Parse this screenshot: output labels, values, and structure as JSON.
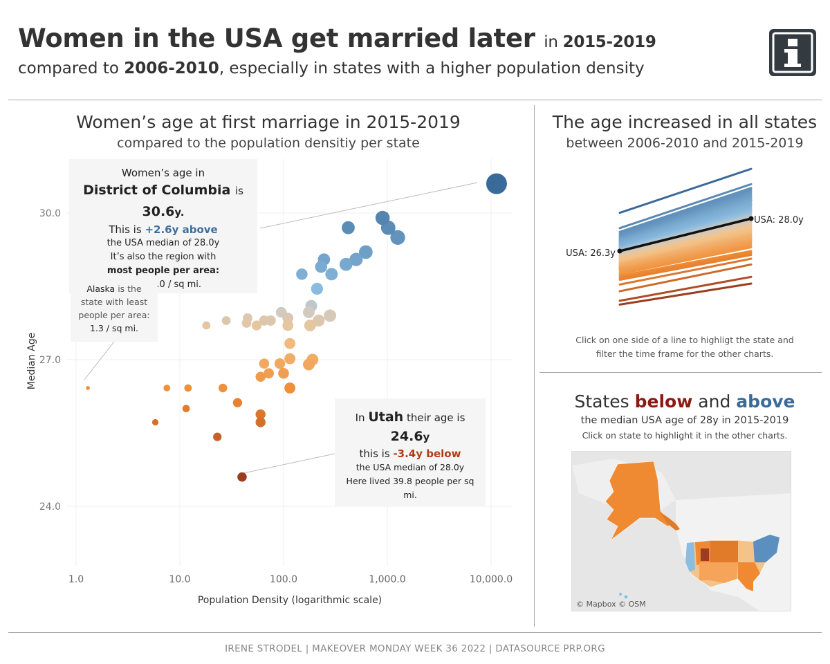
{
  "header": {
    "title_main": "Women in the USA get married later",
    "title_in": "in",
    "title_period": "2015-2019",
    "subtitle_pre": "compared to",
    "subtitle_period": "2006-2010",
    "subtitle_post": ", especially in states with a higher population density",
    "info_icon": "info-icon"
  },
  "scatter": {
    "title": "Women’s age at first marriage in 2015-2019",
    "subtitle": "compared to the population densitiy per state",
    "ylabel": "Median Age",
    "xlabel": "Population Density (logarithmic scale)",
    "xticks": [
      "1.0",
      "10.0",
      "100.0",
      "1,000.0",
      "10,000.0"
    ],
    "yticks": [
      "30.0",
      "27.0",
      "24.0"
    ]
  },
  "tooltips": {
    "dc": {
      "line1": "Women’s age in",
      "state": "District of Columbia",
      "is": "is",
      "value": "30.6",
      "value_unit": "y.",
      "line_this": "This is",
      "diff": "+2.6y above",
      "line_median": "the USA median of 28.0y",
      "line_region": "It’s also the region with",
      "line_most": "most people per area:",
      "line_density": "11,295.0 / sq mi."
    },
    "ak": {
      "state": "Alaska",
      "line1": "is the",
      "line2": "state with least",
      "line3": "people per area:",
      "line4": "1.3 / sq mi."
    },
    "ut": {
      "in": "In",
      "state": "Utah",
      "line1": "their age is",
      "value": "24.6",
      "value_unit": "y",
      "line_this": "this is",
      "diff": "-3.4y below",
      "line_median": "the USA median of 28.0y",
      "line_density": "Here lived 39.8 people per sq mi."
    }
  },
  "slope": {
    "title": "The age increased in all states",
    "subtitle": "between 2006-2010 and 2015-2019",
    "label_left": "USA: 26.3y",
    "label_right": "USA: 28.0y",
    "note_line1": "Click on one side of a line to highligt the state and",
    "note_line2": "filter the time frame for the other charts."
  },
  "map": {
    "title_pre": "States",
    "title_below": "below",
    "title_and": "and",
    "title_above": "above",
    "subtitle": "the median USA age of 28y in 2015-2019",
    "note": "Click on state to highlight it in the other charts.",
    "credit": "© Mapbox © OSM"
  },
  "footer": {
    "text": "IRENE STRODEL | MAKEOVER MONDAY WEEK 36 2022 | DATASOURCE PRP.ORG"
  },
  "colors": {
    "above_dark": "#3a6a99",
    "above_light": "#8cbde0",
    "neutral": "#cfcac2",
    "below_light": "#f3c38a",
    "below_mid": "#ef8a32",
    "below_dark": "#9c3d1f"
  },
  "chart_data": [
    {
      "type": "scatter",
      "title": "Women’s age at first marriage in 2015-2019",
      "xlabel": "Population Density (logarithmic scale)",
      "ylabel": "Median Age",
      "x_scale": "log",
      "xlim": [
        0.9,
        20000
      ],
      "ylim": [
        22.9,
        31.2
      ],
      "grid": true,
      "points": [
        {
          "x": 11295,
          "y": 30.6
        },
        {
          "x": 1260,
          "y": 29.5
        },
        {
          "x": 1020,
          "y": 29.7
        },
        {
          "x": 900,
          "y": 29.9
        },
        {
          "x": 420,
          "y": 29.7
        },
        {
          "x": 620,
          "y": 29.2
        },
        {
          "x": 500,
          "y": 29.05
        },
        {
          "x": 400,
          "y": 28.95
        },
        {
          "x": 245,
          "y": 29.05
        },
        {
          "x": 230,
          "y": 28.9
        },
        {
          "x": 290,
          "y": 28.75
        },
        {
          "x": 150,
          "y": 28.75
        },
        {
          "x": 210,
          "y": 28.45
        },
        {
          "x": 185,
          "y": 28.1
        },
        {
          "x": 175,
          "y": 27.97
        },
        {
          "x": 95,
          "y": 27.97
        },
        {
          "x": 110,
          "y": 27.85
        },
        {
          "x": 280,
          "y": 27.9
        },
        {
          "x": 218,
          "y": 27.8
        },
        {
          "x": 180,
          "y": 27.7
        },
        {
          "x": 110,
          "y": 27.7
        },
        {
          "x": 75,
          "y": 27.8
        },
        {
          "x": 65,
          "y": 27.8
        },
        {
          "x": 45,
          "y": 27.85
        },
        {
          "x": 44,
          "y": 27.75
        },
        {
          "x": 55,
          "y": 27.7
        },
        {
          "x": 28,
          "y": 27.8
        },
        {
          "x": 18,
          "y": 27.7
        },
        {
          "x": 115,
          "y": 27.33
        },
        {
          "x": 115,
          "y": 27.02
        },
        {
          "x": 92,
          "y": 26.92
        },
        {
          "x": 65,
          "y": 26.92
        },
        {
          "x": 190,
          "y": 27.0
        },
        {
          "x": 175,
          "y": 26.9
        },
        {
          "x": 72,
          "y": 26.72
        },
        {
          "x": 100,
          "y": 26.72
        },
        {
          "x": 60,
          "y": 26.65
        },
        {
          "x": 115,
          "y": 26.42
        },
        {
          "x": 26,
          "y": 26.42
        },
        {
          "x": 12,
          "y": 26.42
        },
        {
          "x": 7.5,
          "y": 26.42
        },
        {
          "x": 1.3,
          "y": 26.42
        },
        {
          "x": 36,
          "y": 26.12
        },
        {
          "x": 11.5,
          "y": 26.0
        },
        {
          "x": 60,
          "y": 25.88
        },
        {
          "x": 60,
          "y": 25.72
        },
        {
          "x": 5.8,
          "y": 25.72
        },
        {
          "x": 23,
          "y": 25.42
        },
        {
          "x": 39.8,
          "y": 24.6
        }
      ]
    },
    {
      "type": "line",
      "title": "The age increased in all states",
      "x": [
        "2006-2010",
        "2015-2019"
      ],
      "usa": {
        "name": "USA",
        "values": [
          26.3,
          28.0
        ]
      },
      "series": [
        {
          "values": [
            28.3,
            30.6
          ]
        },
        {
          "values": [
            27.5,
            29.8
          ]
        },
        {
          "values": [
            27.3,
            29.6
          ]
        },
        {
          "values": [
            27.2,
            29.5
          ]
        },
        {
          "values": [
            27.1,
            29.4
          ]
        },
        {
          "values": [
            27.0,
            29.3
          ]
        },
        {
          "values": [
            26.95,
            29.2
          ]
        },
        {
          "values": [
            26.9,
            29.1
          ]
        },
        {
          "values": [
            26.85,
            29.0
          ]
        },
        {
          "values": [
            26.8,
            28.95
          ]
        },
        {
          "values": [
            26.75,
            28.9
          ]
        },
        {
          "values": [
            26.7,
            28.8
          ]
        },
        {
          "values": [
            26.65,
            28.75
          ]
        },
        {
          "values": [
            26.6,
            28.7
          ]
        },
        {
          "values": [
            26.55,
            28.6
          ]
        },
        {
          "values": [
            26.5,
            28.5
          ]
        },
        {
          "values": [
            26.45,
            28.4
          ]
        },
        {
          "values": [
            26.4,
            28.3
          ]
        },
        {
          "values": [
            26.35,
            28.2
          ]
        },
        {
          "values": [
            26.3,
            28.1
          ]
        },
        {
          "values": [
            26.25,
            28.0
          ]
        },
        {
          "values": [
            26.2,
            27.95
          ]
        },
        {
          "values": [
            26.1,
            27.85
          ]
        },
        {
          "values": [
            26.05,
            27.8
          ]
        },
        {
          "values": [
            26.0,
            27.7
          ]
        },
        {
          "values": [
            25.95,
            27.6
          ]
        },
        {
          "values": [
            25.9,
            27.5
          ]
        },
        {
          "values": [
            25.85,
            27.45
          ]
        },
        {
          "values": [
            25.8,
            27.4
          ]
        },
        {
          "values": [
            25.7,
            27.3
          ]
        },
        {
          "values": [
            25.65,
            27.2
          ]
        },
        {
          "values": [
            25.6,
            27.1
          ]
        },
        {
          "values": [
            25.55,
            27.05
          ]
        },
        {
          "values": [
            25.5,
            27.0
          ]
        },
        {
          "values": [
            25.45,
            26.9
          ]
        },
        {
          "values": [
            25.4,
            26.85
          ]
        },
        {
          "values": [
            25.35,
            26.8
          ]
        },
        {
          "values": [
            25.3,
            26.7
          ]
        },
        {
          "values": [
            25.2,
            26.6
          ]
        },
        {
          "values": [
            25.1,
            26.5
          ]
        },
        {
          "values": [
            25.0,
            26.3
          ]
        },
        {
          "values": [
            24.9,
            26.2
          ]
        },
        {
          "values": [
            24.8,
            26.1
          ]
        },
        {
          "values": [
            24.55,
            25.9
          ]
        },
        {
          "values": [
            24.2,
            25.6
          ]
        },
        {
          "values": [
            23.7,
            24.95
          ]
        },
        {
          "values": [
            23.5,
            24.6
          ]
        }
      ]
    }
  ]
}
